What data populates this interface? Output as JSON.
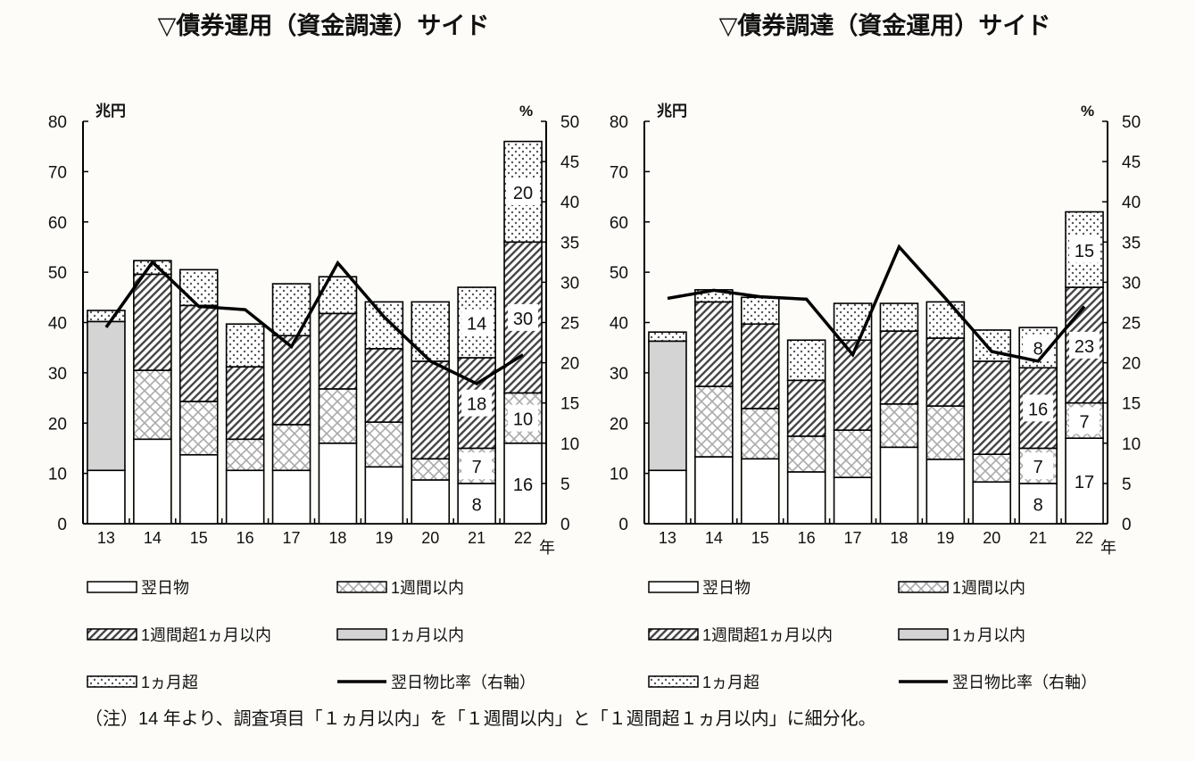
{
  "note": "（注）14 年より、調査項目「１ヵ月以内」を「１週間以内」と「１週間超１ヵ月以内」に細分化。",
  "colors": {
    "line": "#000000",
    "one_month": "#d4d4d4",
    "hatch": "#333333",
    "background": "#fdfcf8"
  },
  "chart_data": [
    {
      "type": "bar",
      "title": "▽債券運用（資金調達）サイド",
      "ylabel": "兆円",
      "y2label": "%",
      "xlabel": "年",
      "ylim": [
        0,
        80
      ],
      "y2lim": [
        0,
        50
      ],
      "yticks": [
        0,
        10,
        20,
        30,
        40,
        50,
        60,
        70,
        80
      ],
      "y2ticks": [
        0,
        5,
        10,
        15,
        20,
        25,
        30,
        35,
        40,
        45,
        50
      ],
      "categories": [
        "13",
        "14",
        "15",
        "16",
        "17",
        "18",
        "19",
        "20",
        "21",
        "22"
      ],
      "series": [
        {
          "name": "翌日物",
          "pattern": "white",
          "values": [
            10.6,
            16.8,
            13.7,
            10.6,
            10.6,
            16.0,
            11.3,
            8.7,
            8,
            16
          ]
        },
        {
          "name": "1週間以内",
          "pattern": "cross",
          "values": [
            0,
            13.7,
            10.6,
            6.2,
            9.1,
            10.8,
            8.9,
            4.2,
            7,
            10
          ]
        },
        {
          "name": "1週間超1ヵ月以内",
          "pattern": "diag",
          "values": [
            0,
            19.1,
            19.1,
            14.4,
            17.7,
            15.0,
            14.6,
            19.4,
            18,
            30
          ]
        },
        {
          "name": "1ヵ月以内",
          "pattern": "gray",
          "values": [
            29.6,
            0,
            0,
            0,
            0,
            0,
            0,
            0,
            0,
            0
          ]
        },
        {
          "name": "1ヵ月超",
          "pattern": "dots",
          "values": [
            2.2,
            2.7,
            7.1,
            8.5,
            10.3,
            7.3,
            9.3,
            11.8,
            14,
            20
          ]
        }
      ],
      "line": {
        "name": "翌日物比率（右軸）",
        "axis": "right",
        "values": [
          24.4,
          32.5,
          27.0,
          26.6,
          22.0,
          32.4,
          25.7,
          20.2,
          17.4,
          21.0
        ]
      },
      "data_labels": {
        "21": [
          "8",
          "7",
          "18",
          "14"
        ],
        "22": [
          "16",
          "10",
          "30",
          "20"
        ]
      },
      "legend_position": "bottom"
    },
    {
      "type": "bar",
      "title": "▽債券調達（資金運用）サイド",
      "ylabel": "兆円",
      "y2label": "%",
      "xlabel": "年",
      "ylim": [
        0,
        80
      ],
      "y2lim": [
        0,
        50
      ],
      "yticks": [
        0,
        10,
        20,
        30,
        40,
        50,
        60,
        70,
        80
      ],
      "y2ticks": [
        0,
        5,
        10,
        15,
        20,
        25,
        30,
        35,
        40,
        45,
        50
      ],
      "categories": [
        "13",
        "14",
        "15",
        "16",
        "17",
        "18",
        "19",
        "20",
        "21",
        "22"
      ],
      "series": [
        {
          "name": "翌日物",
          "pattern": "white",
          "values": [
            10.6,
            13.3,
            12.9,
            10.3,
            9.2,
            15.2,
            12.8,
            8.3,
            8,
            17
          ]
        },
        {
          "name": "1週間以内",
          "pattern": "cross",
          "values": [
            0,
            14.0,
            10.0,
            7.1,
            9.4,
            8.6,
            10.6,
            5.5,
            7,
            7
          ]
        },
        {
          "name": "1週間超1ヵ月以内",
          "pattern": "diag",
          "values": [
            0,
            16.8,
            16.8,
            11.1,
            17.9,
            14.5,
            13.5,
            18.5,
            16,
            23
          ]
        },
        {
          "name": "1ヵ月以内",
          "pattern": "gray",
          "values": [
            25.7,
            0,
            0,
            0,
            0,
            0,
            0,
            0,
            0,
            0
          ]
        },
        {
          "name": "1ヵ月超",
          "pattern": "dots",
          "values": [
            1.8,
            2.4,
            5.3,
            8.0,
            7.3,
            5.5,
            7.2,
            6.2,
            8,
            15
          ]
        }
      ],
      "line": {
        "name": "翌日物比率（右軸）",
        "axis": "right",
        "values": [
          28.0,
          29.0,
          28.2,
          27.9,
          21.0,
          34.4,
          28.0,
          21.4,
          20.2,
          27.0
        ]
      },
      "data_labels": {
        "21": [
          "8",
          "7",
          "16",
          "8"
        ],
        "22": [
          "17",
          "7",
          "23",
          "15"
        ]
      },
      "legend_position": "bottom"
    }
  ]
}
